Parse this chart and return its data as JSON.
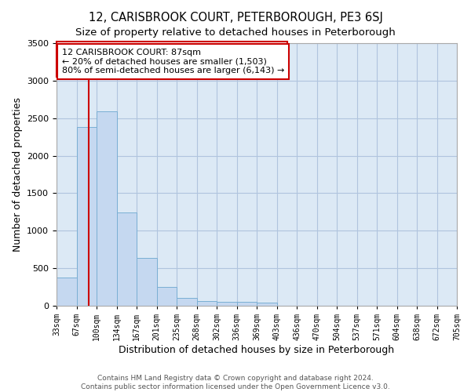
{
  "title": "12, CARISBROOK COURT, PETERBOROUGH, PE3 6SJ",
  "subtitle": "Size of property relative to detached houses in Peterborough",
  "xlabel": "Distribution of detached houses by size in Peterborough",
  "ylabel": "Number of detached properties",
  "footer_line1": "Contains HM Land Registry data © Crown copyright and database right 2024.",
  "footer_line2": "Contains public sector information licensed under the Open Government Licence v3.0.",
  "bin_labels": [
    "33sqm",
    "67sqm",
    "100sqm",
    "134sqm",
    "167sqm",
    "201sqm",
    "235sqm",
    "268sqm",
    "302sqm",
    "336sqm",
    "369sqm",
    "403sqm",
    "436sqm",
    "470sqm",
    "504sqm",
    "537sqm",
    "571sqm",
    "604sqm",
    "638sqm",
    "672sqm",
    "705sqm"
  ],
  "bar_values": [
    380,
    2380,
    2590,
    1240,
    640,
    250,
    100,
    60,
    55,
    50,
    45,
    0,
    0,
    0,
    0,
    0,
    0,
    0,
    0,
    0
  ],
  "bar_color": "#c5d8f0",
  "bar_edgecolor": "#7aafd4",
  "vline_color": "#cc0000",
  "annotation_text": "12 CARISBROOK COURT: 87sqm\n← 20% of detached houses are smaller (1,503)\n80% of semi-detached houses are larger (6,143) →",
  "annotation_box_color": "#ffffff",
  "annotation_box_edgecolor": "#cc0000",
  "ylim": [
    0,
    3500
  ],
  "background_color": "#ffffff",
  "plot_bg_color": "#dce9f5",
  "grid_color": "#b0c4de",
  "title_fontsize": 10.5,
  "subtitle_fontsize": 9.5,
  "axis_label_fontsize": 9,
  "tick_fontsize": 7,
  "footer_fontsize": 6.5,
  "annotation_fontsize": 8,
  "bin_edges": [
    33,
    67,
    100,
    134,
    167,
    201,
    235,
    268,
    302,
    336,
    369,
    403,
    436,
    470,
    504,
    537,
    571,
    604,
    638,
    672,
    705
  ],
  "vline_sqm": 87
}
